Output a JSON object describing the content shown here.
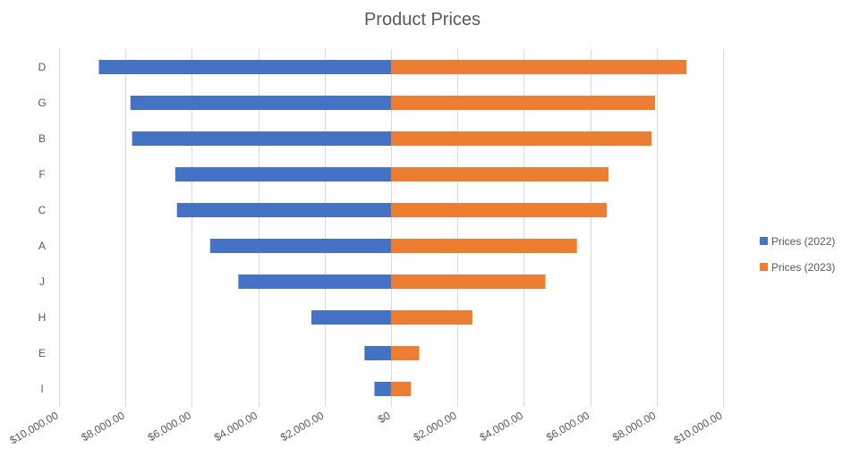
{
  "chart_data": {
    "type": "bar",
    "orientation": "horizontal",
    "title": "Product Prices",
    "categories": [
      "D",
      "G",
      "B",
      "F",
      "C",
      "A",
      "J",
      "H",
      "E",
      "I"
    ],
    "series": [
      {
        "name": "Prices (2022)",
        "color": "#4472c4",
        "values": [
          -8800,
          -7850,
          -7800,
          -6500,
          -6450,
          -5450,
          -4600,
          -2400,
          -800,
          -500
        ]
      },
      {
        "name": "Prices (2023)",
        "color": "#ed7d31",
        "values": [
          8900,
          7950,
          7850,
          6550,
          6500,
          5600,
          4650,
          2450,
          850,
          600
        ]
      }
    ],
    "xlim": [
      -10000,
      10000
    ],
    "x_ticks": [
      -10000,
      -8000,
      -6000,
      -4000,
      -2000,
      0,
      2000,
      4000,
      6000,
      8000,
      10000
    ],
    "x_tick_labels": [
      "$10,000.00",
      "$8,000.00",
      "$6,000.00",
      "$4,000.00",
      "$2,000.00",
      "$0",
      "$2,000.00",
      "$4,000.00",
      "$6,000.00",
      "$8,000.00",
      "$10,000.00"
    ],
    "grid": true,
    "legend_position": "right"
  }
}
